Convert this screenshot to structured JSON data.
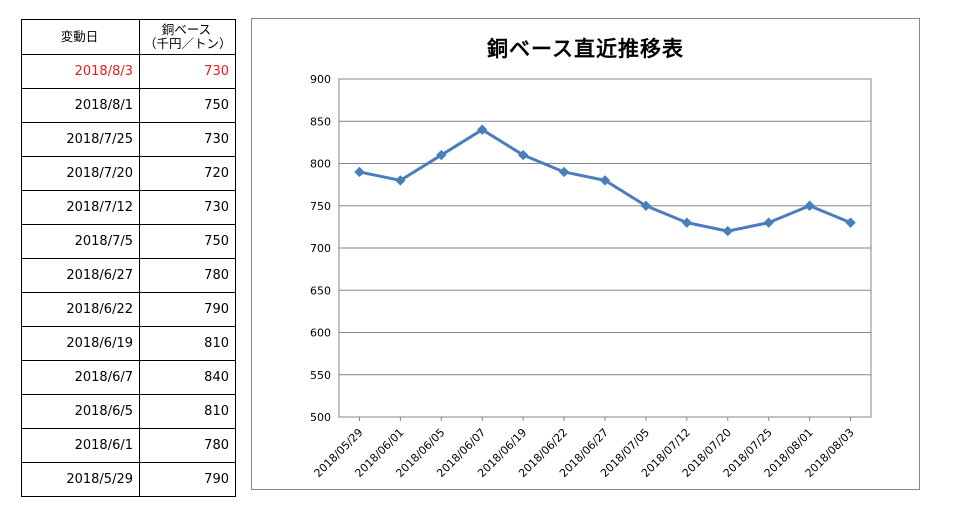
{
  "table": {
    "header": {
      "col1": "変動日",
      "col2_line1": "銅ベース",
      "col2_line2": "（千円／トン）"
    },
    "rows": [
      {
        "date": "2018/8/3",
        "value": "730",
        "highlight": true
      },
      {
        "date": "2018/8/1",
        "value": "750"
      },
      {
        "date": "2018/7/25",
        "value": "730"
      },
      {
        "date": "2018/7/20",
        "value": "720"
      },
      {
        "date": "2018/7/12",
        "value": "730"
      },
      {
        "date": "2018/7/5",
        "value": "750"
      },
      {
        "date": "2018/6/27",
        "value": "780"
      },
      {
        "date": "2018/6/22",
        "value": "790"
      },
      {
        "date": "2018/6/19",
        "value": "810"
      },
      {
        "date": "2018/6/7",
        "value": "840"
      },
      {
        "date": "2018/6/5",
        "value": "810"
      },
      {
        "date": "2018/6/1",
        "value": "780"
      },
      {
        "date": "2018/5/29",
        "value": "790"
      }
    ],
    "highlight_color": "#e02020"
  },
  "chart_data": {
    "type": "line",
    "title": "銅ベース直近推移表",
    "xlabel": "",
    "ylabel": "",
    "categories": [
      "2018/05/29",
      "2018/06/01",
      "2018/06/05",
      "2018/06/07",
      "2018/06/19",
      "2018/06/22",
      "2018/06/27",
      "2018/07/05",
      "2018/07/12",
      "2018/07/20",
      "2018/07/25",
      "2018/08/01",
      "2018/08/03"
    ],
    "series": [
      {
        "values": [
          790,
          780,
          810,
          840,
          810,
          790,
          780,
          750,
          730,
          720,
          730,
          750,
          730
        ],
        "color": "#4a7ebb",
        "marker": "diamond"
      }
    ],
    "ylim": [
      500,
      900
    ],
    "yticks": [
      500,
      550,
      600,
      650,
      700,
      750,
      800,
      850,
      900
    ],
    "grid": true,
    "legend": "none"
  }
}
